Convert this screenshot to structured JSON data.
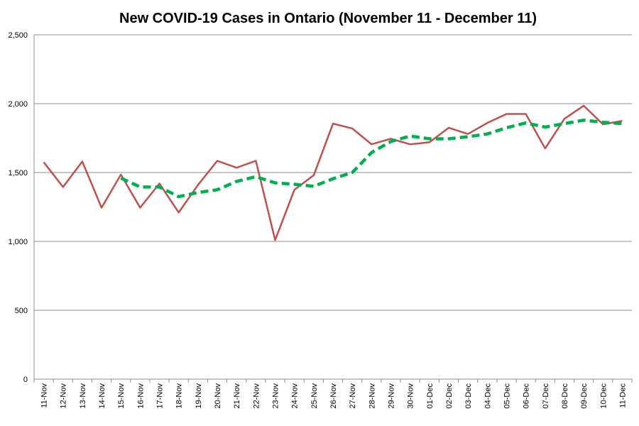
{
  "chart_data": {
    "type": "line",
    "title": "New COVID-19 Cases in Ontario (November 11 - December 11)",
    "xlabel": "",
    "ylabel": "",
    "ylim": [
      0,
      2500
    ],
    "yticks": [
      0,
      500,
      1000,
      1500,
      2000,
      2500
    ],
    "ytick_labels": [
      "0",
      "500",
      "1,000",
      "1,500",
      "2,000",
      "2,500"
    ],
    "grid": true,
    "legend": "none",
    "categories": [
      "11-Nov",
      "12-Nov",
      "13-Nov",
      "14-Nov",
      "15-Nov",
      "16-Nov",
      "17-Nov",
      "18-Nov",
      "19-Nov",
      "20-Nov",
      "21-Nov",
      "22-Nov",
      "23-Nov",
      "24-Nov",
      "25-Nov",
      "26-Nov",
      "27-Nov",
      "28-Nov",
      "29-Nov",
      "30-Nov",
      "01-Dec",
      "02-Dec",
      "03-Dec",
      "04-Dec",
      "05-Dec",
      "06-Dec",
      "07-Dec",
      "08-Dec",
      "09-Dec",
      "10-Dec",
      "11-Dec"
    ],
    "series": [
      {
        "color": "#c0504d",
        "style": "solid",
        "values": [
          1575,
          1395,
          1580,
          1245,
          1485,
          1245,
          1420,
          1210,
          1410,
          1585,
          1535,
          1585,
          1010,
          1375,
          1480,
          1855,
          1820,
          1705,
          1745,
          1705,
          1720,
          1825,
          1780,
          1860,
          1925,
          1925,
          1675,
          1890,
          1985,
          1850,
          1875
        ]
      },
      {
        "color": "#00b050",
        "style": "dashed",
        "values": [
          null,
          null,
          null,
          null,
          1460,
          1395,
          1395,
          1325,
          1355,
          1375,
          1435,
          1470,
          1425,
          1415,
          1400,
          1455,
          1500,
          1645,
          1725,
          1765,
          1745,
          1745,
          1760,
          1780,
          1825,
          1860,
          1830,
          1855,
          1880,
          1865,
          1855
        ]
      }
    ]
  }
}
